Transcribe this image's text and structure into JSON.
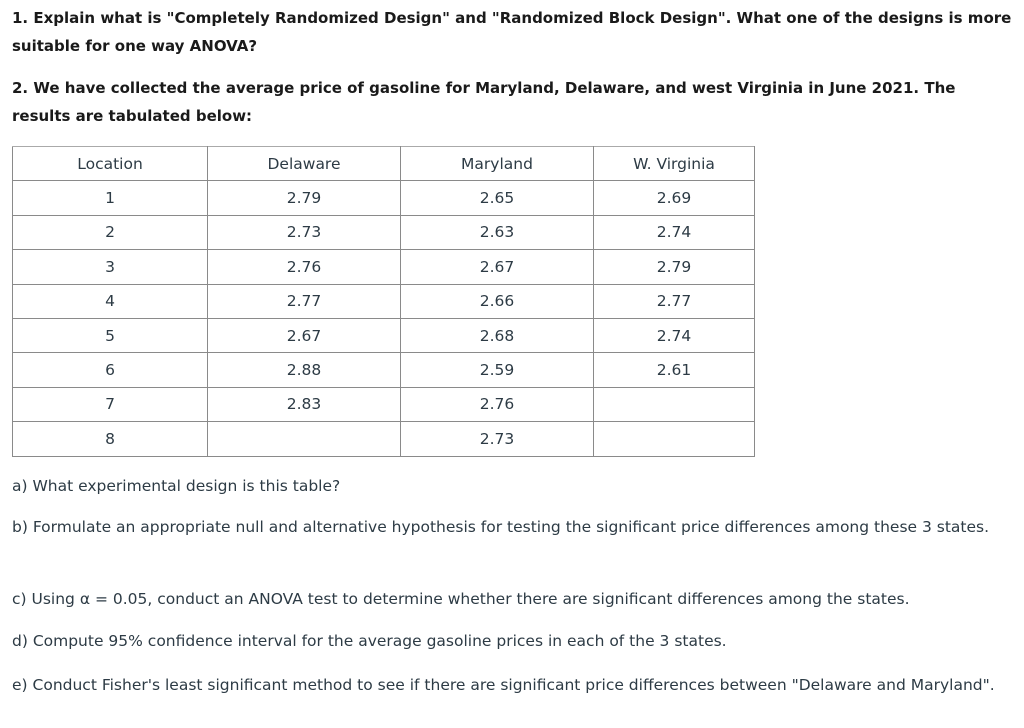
{
  "question1": "1. Explain what is \"Completely Randomized Design\" and \"Randomized Block Design\". What one of the designs is more suitable for one way ANOVA?",
  "question2": "2. We have collected the average price of gasoline for Maryland, Delaware, and west Virginia in June 2021.  The results are tabulated below:",
  "table": {
    "header": [
      "Location",
      "Delaware",
      "Maryland",
      "W. Virginia"
    ],
    "rows": [
      [
        "1",
        "2.79",
        "2.65",
        "2.69"
      ],
      [
        "2",
        "2.73",
        "2.63",
        "2.74"
      ],
      [
        "3",
        "2.76",
        "2.67",
        "2.79"
      ],
      [
        "4",
        "2.77",
        "2.66",
        "2.77"
      ],
      [
        "5",
        "2.67",
        "2.68",
        "2.74"
      ],
      [
        "6",
        "2.88",
        "2.59",
        "2.61"
      ],
      [
        "7",
        "2.83",
        "2.76",
        null
      ],
      [
        "8",
        null,
        "2.73",
        null
      ]
    ]
  },
  "parts": [
    "a) What experimental design is this table?",
    "b) Formulate an appropriate null and alternative hypothesis for testing the significant price differences among these 3 states.",
    "c)  Using α = 0.05, conduct an ANOVA test to determine whether there are significant differences among the states.",
    "d)  Compute 95% confidence interval for the average gasoline prices in each of the 3 states.",
    "e)  Conduct Fisher's least significant method to see if there are significant price differences between \"Delaware and Maryland\"."
  ]
}
